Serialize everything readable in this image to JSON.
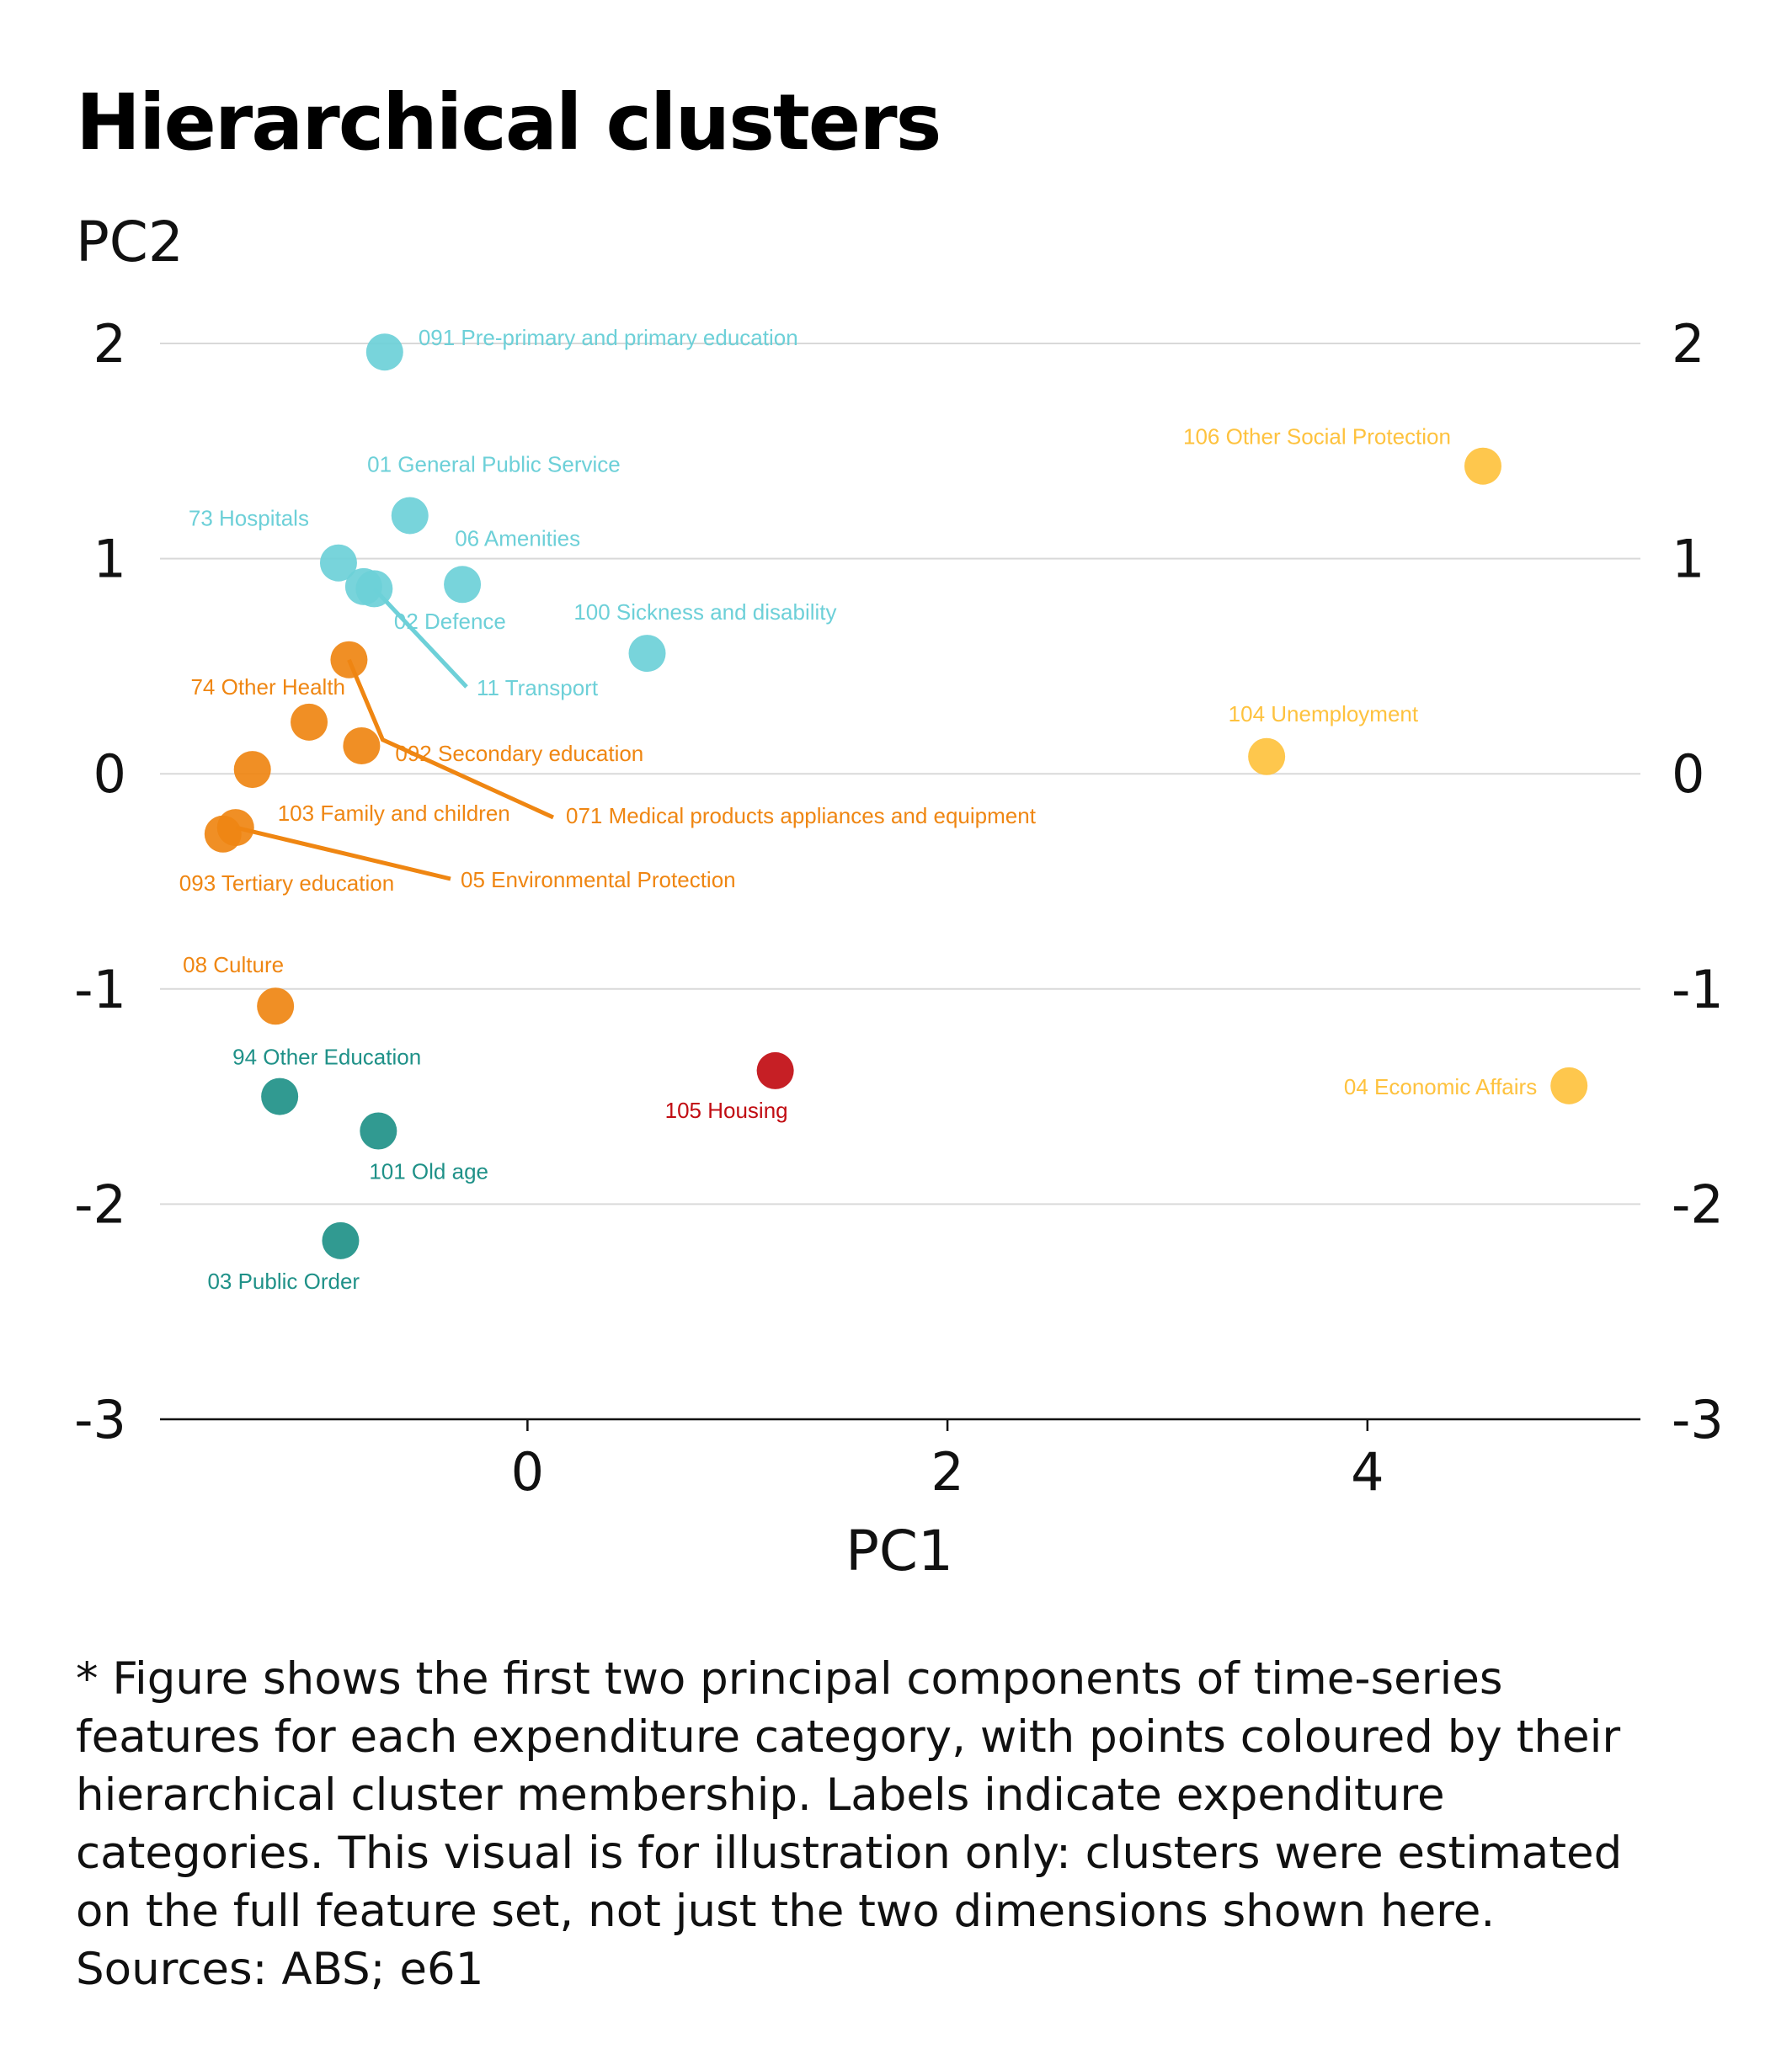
{
  "title": "Hierarchical clusters",
  "colors": {
    "cluster_cyan": "#6dd0d8",
    "cluster_orange": "#ef8612",
    "cluster_yellow": "#fec23e",
    "cluster_teal": "#1f9188",
    "cluster_red": "#c10c12",
    "gridline": "#d9d9d9",
    "axis": "#111111"
  },
  "chart_data": {
    "type": "scatter",
    "xlabel": "PC1",
    "ylabel": "PC2",
    "xlim": [
      -1.75,
      5.3
    ],
    "ylim": [
      -3,
      2
    ],
    "x_ticks": [
      0,
      2,
      4
    ],
    "y_ticks": [
      2,
      1,
      0,
      -1,
      -2,
      -3
    ],
    "grid": "horizontal",
    "legend": "none",
    "points": [
      {
        "label": "091 Pre-primary and primary education",
        "x": -0.68,
        "y": 1.96,
        "cluster": "cyan"
      },
      {
        "label": "01 General Public Service",
        "x": -0.56,
        "y": 1.2,
        "cluster": "cyan"
      },
      {
        "label": "73 Hospitals",
        "x": -0.9,
        "y": 0.98,
        "cluster": "cyan"
      },
      {
        "label": "06 Amenities",
        "x": -0.31,
        "y": 0.88,
        "cluster": "cyan"
      },
      {
        "label": "02 Defence",
        "x": -0.78,
        "y": 0.87,
        "cluster": "cyan"
      },
      {
        "label": "11 Transport",
        "x": -0.73,
        "y": 0.86,
        "cluster": "cyan"
      },
      {
        "label": "100 Sickness and disability",
        "x": 0.57,
        "y": 0.56,
        "cluster": "cyan"
      },
      {
        "label": "106 Other Social Protection",
        "x": 4.55,
        "y": 1.43,
        "cluster": "yellow"
      },
      {
        "label": "104 Unemployment",
        "x": 3.52,
        "y": 0.08,
        "cluster": "yellow"
      },
      {
        "label": "04 Economic Affairs",
        "x": 4.96,
        "y": -1.45,
        "cluster": "yellow"
      },
      {
        "label": "74 Other Health",
        "x": -1.04,
        "y": 0.24,
        "cluster": "orange"
      },
      {
        "label": "071 Medical products appliances and equipment",
        "x": -0.85,
        "y": 0.53,
        "cluster": "orange"
      },
      {
        "label": "092 Secondary education",
        "x": -0.79,
        "y": 0.13,
        "cluster": "orange"
      },
      {
        "label": "103 Family and children",
        "x": -1.31,
        "y": 0.02,
        "cluster": "orange"
      },
      {
        "label": "093 Tertiary education",
        "x": -1.45,
        "y": -0.28,
        "cluster": "orange"
      },
      {
        "label": "05 Environmental Protection",
        "x": -1.39,
        "y": -0.25,
        "cluster": "orange"
      },
      {
        "label": "08 Culture",
        "x": -1.2,
        "y": -1.08,
        "cluster": "orange"
      },
      {
        "label": "94 Other Education",
        "x": -1.18,
        "y": -1.5,
        "cluster": "teal"
      },
      {
        "label": "101 Old age",
        "x": -0.71,
        "y": -1.66,
        "cluster": "teal"
      },
      {
        "label": "03 Public Order",
        "x": -0.89,
        "y": -2.17,
        "cluster": "teal"
      },
      {
        "label": "105 Housing",
        "x": 1.18,
        "y": -1.38,
        "cluster": "red"
      }
    ]
  },
  "footnote": [
    "* Figure shows the first two principal components of time-series",
    "features for each expenditure category, with points coloured by their",
    "hierarchical cluster membership. Labels indicate expenditure",
    "categories. This visual is for illustration only: clusters were estimated",
    "on the full feature set, not just the two dimensions shown here.",
    "Sources: ABS; e61"
  ]
}
